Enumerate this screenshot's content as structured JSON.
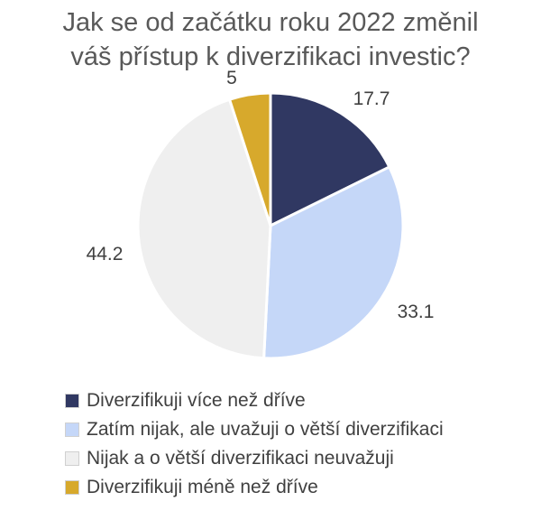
{
  "chart_data": {
    "type": "pie",
    "title_lines": [
      "Jak se od začátku roku 2022 změnil",
      "váš přístup k diverzifikaci investic?"
    ],
    "categories": [
      "Diverzifikuji více než dříve",
      "Zatím nijak, ale uvažuji o větší diverzifikaci",
      "Nijak a o větší diverzifikaci neuvažuji",
      "Diverzifikuji méně než dříve"
    ],
    "values": [
      17.7,
      33.1,
      44.2,
      5
    ],
    "value_labels": [
      "17.7",
      "33.1",
      "44.2",
      "5"
    ],
    "colors": [
      "#303862",
      "#c5d7f8",
      "#efefef",
      "#d7a92c"
    ],
    "start_angle_deg": 0,
    "direction": "clockwise",
    "legend_position": "bottom-left"
  }
}
